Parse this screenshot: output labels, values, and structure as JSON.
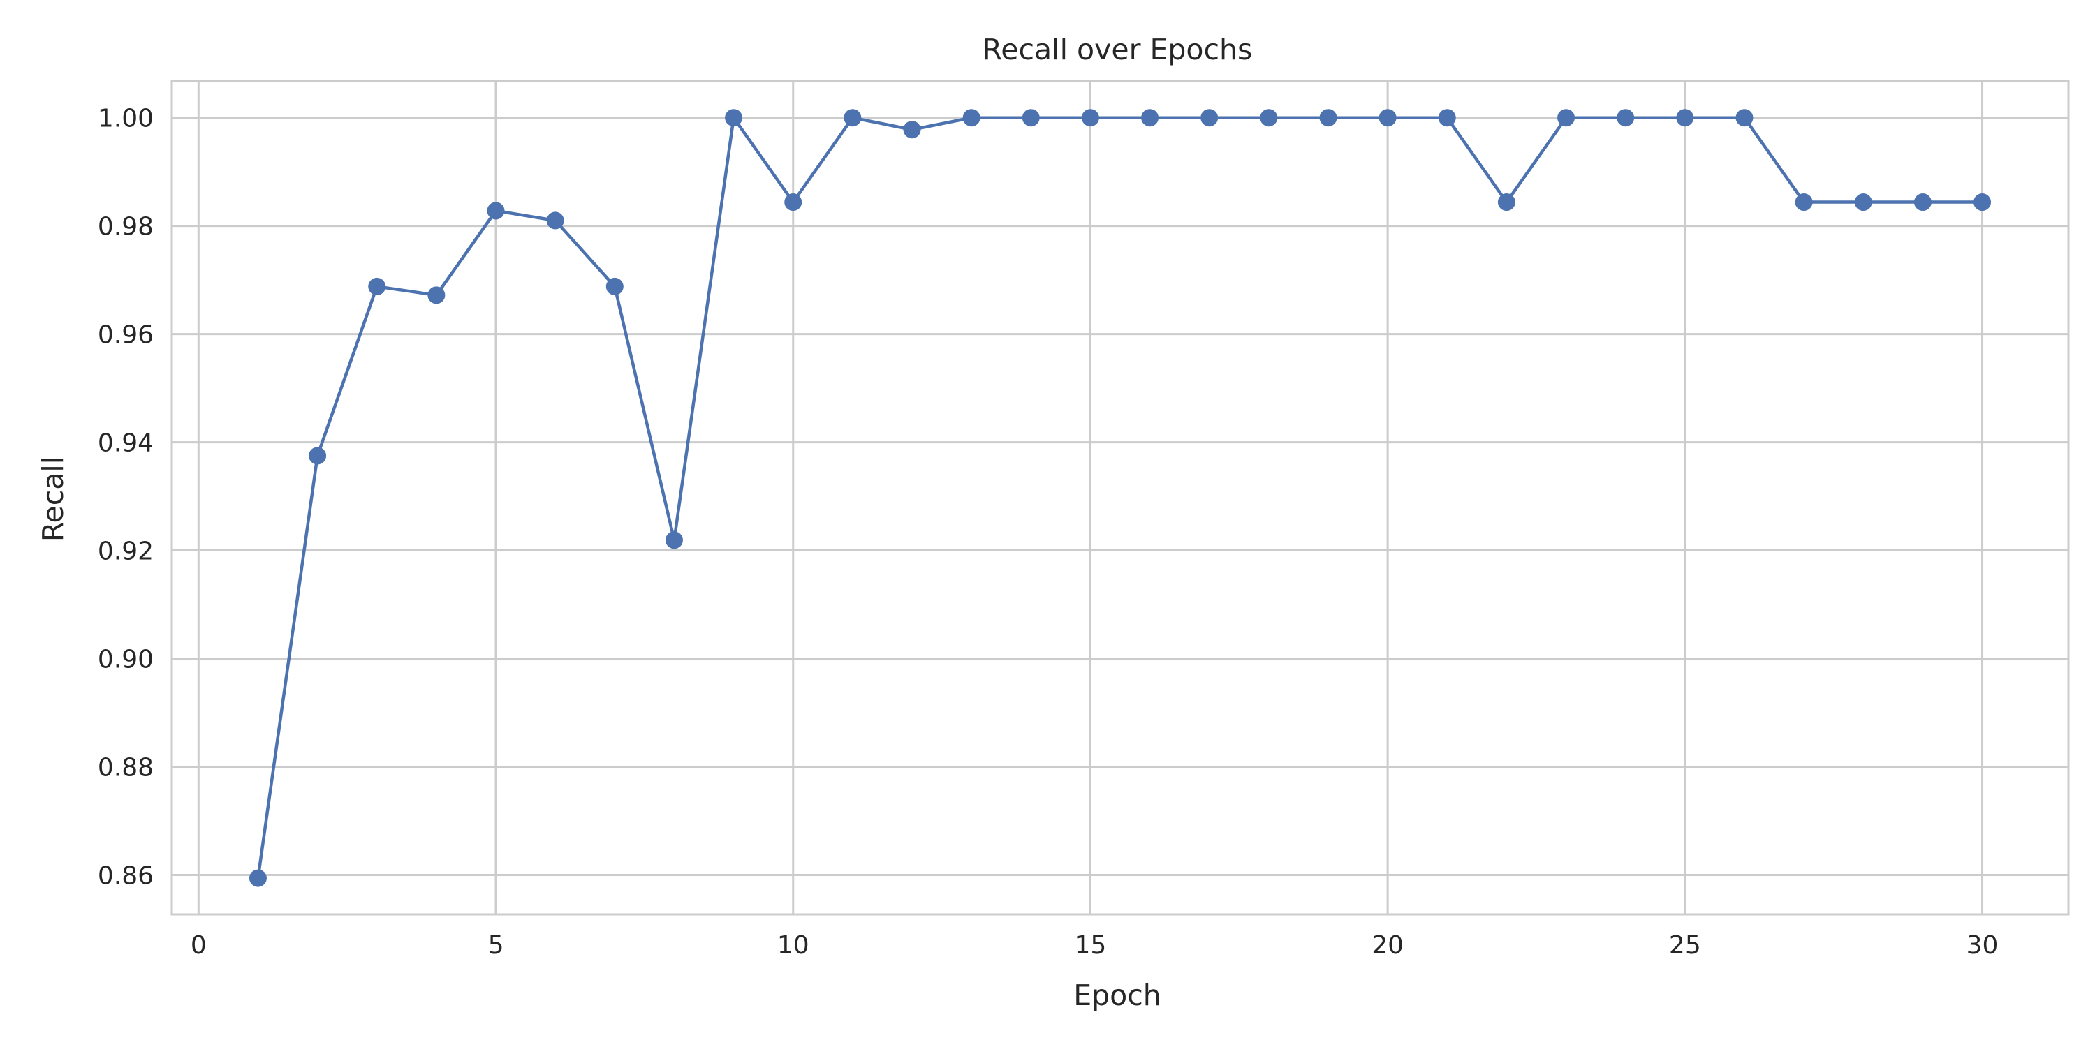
{
  "chart_data": {
    "type": "line",
    "title": "Recall over Epochs",
    "xlabel": "Epoch",
    "ylabel": "Recall",
    "xlim": [
      -0.45,
      31.45
    ],
    "ylim": [
      0.8527,
      1.0068
    ],
    "xticks": [
      0,
      5,
      10,
      15,
      20,
      25,
      30
    ],
    "xtick_labels": [
      "0",
      "5",
      "10",
      "15",
      "20",
      "25",
      "30"
    ],
    "yticks": [
      0.86,
      0.88,
      0.9,
      0.92,
      0.94,
      0.96,
      0.98,
      1.0
    ],
    "ytick_labels": [
      "0.86",
      "0.88",
      "0.90",
      "0.92",
      "0.94",
      "0.96",
      "0.98",
      "1.00"
    ],
    "grid": true,
    "marker": "circle",
    "series": [
      {
        "color": "#4c72b0",
        "x": [
          1,
          2,
          3,
          4,
          5,
          6,
          7,
          8,
          9,
          10,
          11,
          12,
          13,
          14,
          15,
          16,
          17,
          18,
          19,
          20,
          21,
          22,
          23,
          24,
          25,
          26,
          27,
          28,
          29,
          30
        ],
        "values": [
          0.8594,
          0.9375,
          0.9688,
          0.9672,
          0.9828,
          0.981,
          0.9688,
          0.9219,
          1.0,
          0.9844,
          1.0,
          0.9978,
          1.0,
          1.0,
          1.0,
          1.0,
          1.0,
          1.0,
          1.0,
          1.0,
          1.0,
          0.9844,
          1.0,
          1.0,
          1.0,
          1.0,
          0.9844,
          0.9844,
          0.9844,
          0.9844
        ]
      }
    ]
  }
}
